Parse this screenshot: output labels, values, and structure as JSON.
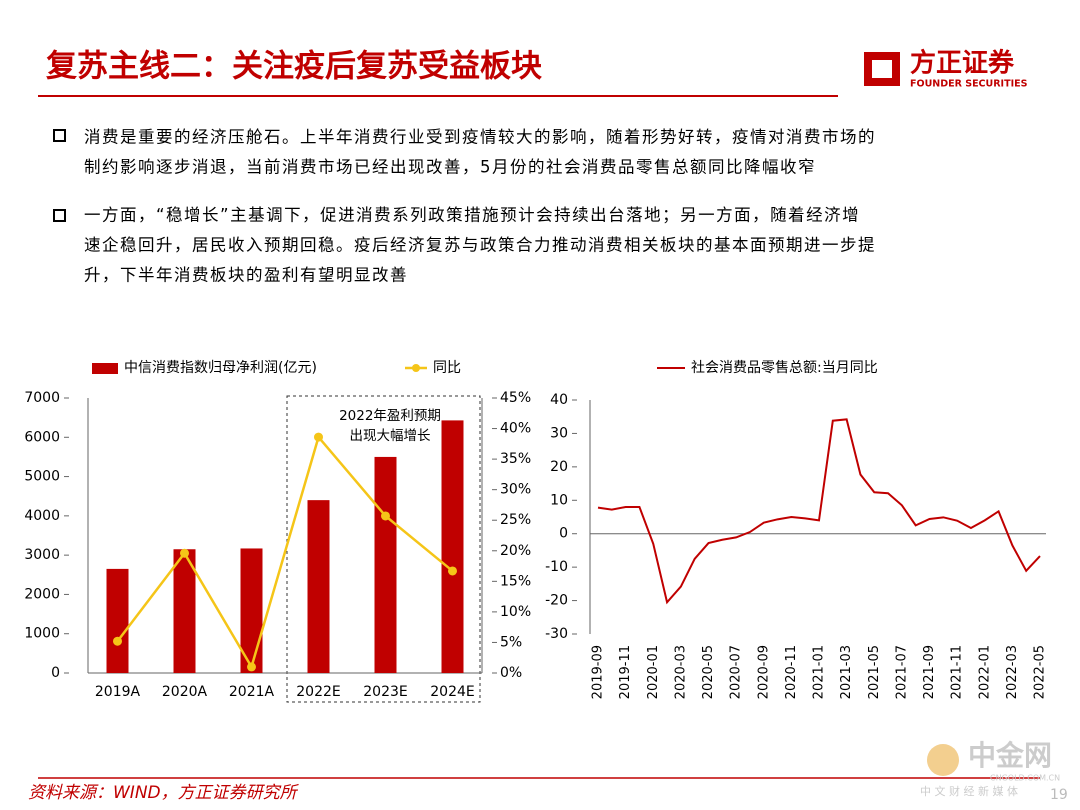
{
  "header": {
    "title": "复苏主线二：关注疫后复苏受益板块",
    "logo_name": "方正证券",
    "logo_en": "FOUNDER SECURITIES"
  },
  "bullets": [
    [
      "消费是重要的经济压舱石。上半年消费行业受到疫情较大的影响，随着形势好转，疫情对消费市场的",
      "制约影响逐步消退，当前消费市场已经出现改善，5月份的社会消费品零售总额同比降幅收窄"
    ],
    [
      "一方面，“稳增长”主基调下，促进消费系列政策措施预计会持续出台落地；另一方面，随着经济增",
      "速企稳回升，居民收入预期回稳。疫后经济复苏与政策合力推动消费相关板块的基本面预期进一步提",
      "升，下半年消费板块的盈利有望明显改善"
    ]
  ],
  "chart_data": [
    {
      "type": "bar",
      "categories": [
        "2019A",
        "2020A",
        "2021A",
        "2022E",
        "2023E",
        "2024E"
      ],
      "series": [
        {
          "name": "中信消费指数归母净利润(亿元)",
          "color": "#c00000",
          "values": [
            2650,
            3150,
            3170,
            4400,
            5500,
            6430
          ]
        },
        {
          "name": "同比",
          "color": "#f5c518",
          "type": "line",
          "axis": "y2",
          "values": [
            5.2,
            19.6,
            1,
            38.6,
            25.7,
            16.7
          ]
        }
      ],
      "ylim": [
        0,
        7000
      ],
      "yticks": [
        0,
        1000,
        2000,
        3000,
        4000,
        5000,
        6000,
        7000
      ],
      "y2lim": [
        0,
        45
      ],
      "y2ticks": [
        {
          "value": 0,
          "label": "0%"
        },
        {
          "value": 5,
          "label": "5%"
        },
        {
          "value": 10,
          "label": "10%"
        },
        {
          "value": 15,
          "label": "15%"
        },
        {
          "value": 20,
          "label": "20%"
        },
        {
          "value": 25,
          "label": "25%"
        },
        {
          "value": 30,
          "label": "30%"
        },
        {
          "value": 35,
          "label": "35%"
        },
        {
          "value": 40,
          "label": "40%"
        },
        {
          "value": 45,
          "label": "45%"
        }
      ],
      "annotation": [
        "2022年盈利预期",
        "出现大幅增长"
      ]
    },
    {
      "type": "line",
      "categories": [
        "2019-09",
        null,
        "2019-11",
        null,
        "2020-01",
        null,
        "2020-03",
        null,
        "2020-05",
        null,
        "2020-07",
        null,
        "2020-09",
        null,
        "2020-11",
        null,
        "2021-01",
        null,
        "2021-03",
        null,
        "2021-05",
        null,
        "2021-07",
        null,
        "2021-09",
        null,
        "2021-11",
        null,
        "2022-01",
        null,
        "2022-03",
        null,
        "2022-05"
      ],
      "series": [
        {
          "name": "社会消费品零售总额:当月同比",
          "color": "#c00000",
          "values": [
            7.8,
            7.2,
            8,
            8,
            -3,
            -20.5,
            -15.8,
            -7.5,
            -2.8,
            -1.8,
            -1.1,
            0.5,
            3.3,
            4.3,
            5,
            4.6,
            4,
            33.8,
            34.2,
            17.7,
            12.4,
            12.1,
            8.5,
            2.5,
            4.4,
            4.9,
            3.9,
            1.7,
            4,
            6.7,
            -3.5,
            -11.1,
            -6.7
          ]
        }
      ],
      "ylim": [
        -30,
        40
      ],
      "yticks": [
        -30,
        -20,
        -10,
        0,
        10,
        20,
        30,
        40
      ]
    }
  ],
  "footer": {
    "source": "资料来源：WIND，方正证券研究所",
    "watermark": "中金网",
    "watermark_en": "CNGOLD.COM.CN",
    "watermark_sub": "中 文 财 经 新 媒 体",
    "page": "19"
  }
}
